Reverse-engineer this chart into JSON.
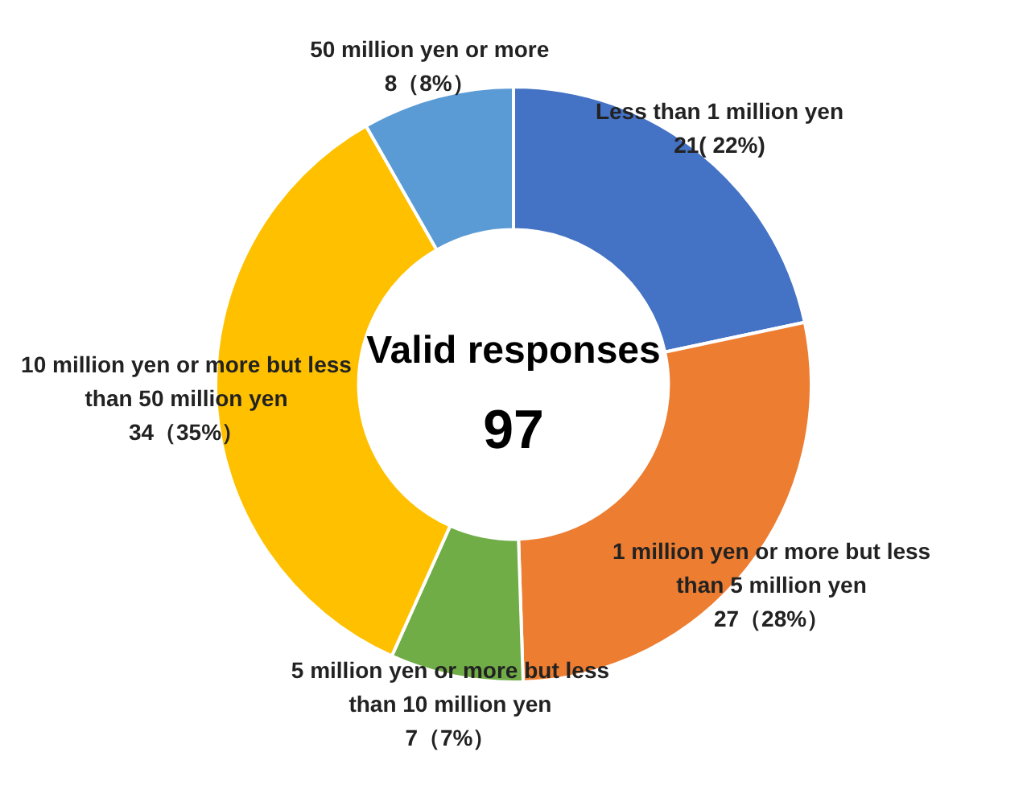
{
  "chart_data": {
    "type": "donut",
    "categories": [
      "Less than 1 million yen",
      "1 million yen or more but less than 5 million yen",
      "5 million yen or more but less than 10 million yen",
      "10 million yen or more but less than 50 million yen",
      "50 million yen or more"
    ],
    "values": [
      21,
      27,
      7,
      34,
      8
    ],
    "value_labels": [
      "21( 22%)",
      "27（28%）",
      "7（7%）",
      "34（35%）",
      "8（8%）"
    ],
    "colors": [
      "#4472c4",
      "#ed7d31",
      "#70ad47",
      "#ffc000",
      "#5b9bd5"
    ],
    "annotations": [
      "Valid responses",
      "97"
    ],
    "legend": false
  }
}
